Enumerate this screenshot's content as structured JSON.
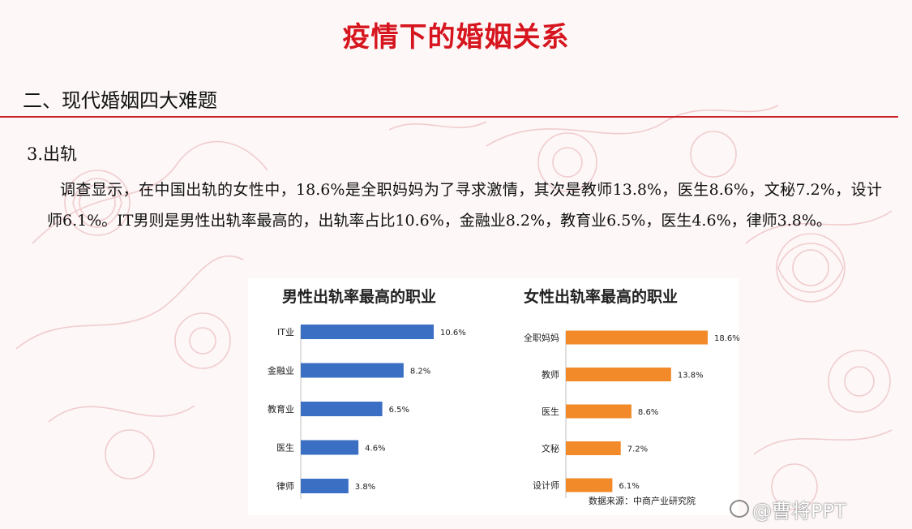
{
  "page": {
    "title": "疫情下的婚姻关系",
    "section": "二、现代婚姻四大难题",
    "subheading": "3.出轨",
    "paragraph": "调查显示，在中国出轨的女性中，18.6%是全职妈妈为了寻求激情，其次是教师13.8%，医生8.6%，文秘7.2%，设计师6.1%。IT男则是男性出轨率最高的，出轨率占比10.6%，金融业8.2%，教育业6.5%，医生4.6%，律师3.8%。",
    "source": "数据来源：中商产业研究院",
    "watermark": "@曹将PPT"
  },
  "colors": {
    "title_red": "#d6151e",
    "rule_red": "#c8232a",
    "male_bar": "#3a6fc4",
    "female_bar": "#f28a2a"
  },
  "chart_data": [
    {
      "type": "bar",
      "orientation": "horizontal",
      "title": "男性出轨率最高的职业",
      "categories": [
        "IT业",
        "金融业",
        "教育业",
        "医生",
        "律师"
      ],
      "values": [
        10.6,
        8.2,
        6.5,
        4.6,
        3.8
      ],
      "labels": [
        "10.6%",
        "8.2%",
        "6.5%",
        "4.6%",
        "3.8%"
      ],
      "unit": "%",
      "color": "#3a6fc4",
      "grid": false,
      "legend": "none"
    },
    {
      "type": "bar",
      "orientation": "horizontal",
      "title": "女性出轨率最高的职业",
      "categories": [
        "全职妈妈",
        "教师",
        "医生",
        "文秘",
        "设计师"
      ],
      "values": [
        18.6,
        13.8,
        8.6,
        7.2,
        6.1
      ],
      "labels": [
        "18.6%",
        "13.8%",
        "8.6%",
        "7.2%",
        "6.1%"
      ],
      "unit": "%",
      "color": "#f28a2a",
      "grid": false,
      "legend": "none"
    }
  ]
}
